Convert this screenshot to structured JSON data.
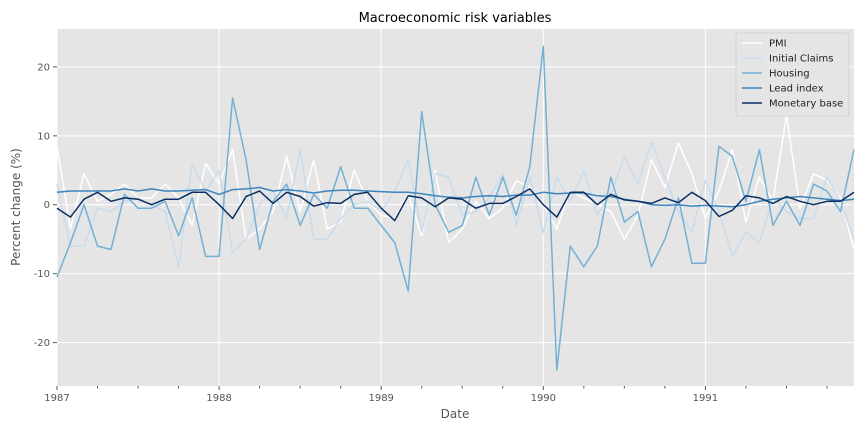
{
  "chart_data": {
    "type": "line",
    "title": "Macroeconomic risk variables",
    "xlabel": "Date",
    "ylabel": "Percent change (%)",
    "xlim": [
      "1987-01",
      "1991-12"
    ],
    "ylim": [
      -26.3,
      25.5
    ],
    "yticks": [
      -20,
      -10,
      0,
      10,
      20
    ],
    "xticks": [
      "1987",
      "1988",
      "1989",
      "1990",
      "1991"
    ],
    "grid": true,
    "legend_position": "top-right",
    "x": [
      "1987-01",
      "1987-02",
      "1987-03",
      "1987-04",
      "1987-05",
      "1987-06",
      "1987-07",
      "1987-08",
      "1987-09",
      "1987-10",
      "1987-11",
      "1987-12",
      "1988-01",
      "1988-02",
      "1988-03",
      "1988-04",
      "1988-05",
      "1988-06",
      "1988-07",
      "1988-08",
      "1988-09",
      "1988-10",
      "1988-11",
      "1988-12",
      "1989-01",
      "1989-02",
      "1989-03",
      "1989-04",
      "1989-05",
      "1989-06",
      "1989-07",
      "1989-08",
      "1989-09",
      "1989-10",
      "1989-11",
      "1989-12",
      "1990-01",
      "1990-02",
      "1990-03",
      "1990-04",
      "1990-05",
      "1990-06",
      "1990-07",
      "1990-08",
      "1990-09",
      "1990-10",
      "1990-11",
      "1990-12",
      "1991-01",
      "1991-02",
      "1991-03",
      "1991-04",
      "1991-05",
      "1991-06",
      "1991-07",
      "1991-08",
      "1991-09",
      "1991-10",
      "1991-11",
      "1991-12"
    ],
    "series": [
      {
        "name": "PMI",
        "color": "#ffffff",
        "values": [
          8.5,
          -3.5,
          4.5,
          0.5,
          1.5,
          3,
          1,
          1,
          3,
          1,
          -3,
          6,
          3,
          8,
          -5,
          -3.5,
          -1,
          7,
          -1,
          6.5,
          -3.5,
          -2.5,
          5,
          0.5,
          -1.5,
          -2,
          1.5,
          -4.5,
          5,
          -5.5,
          -3.5,
          0.5,
          -2,
          -0.5,
          3.5,
          2.5,
          0,
          -3.5,
          2,
          1,
          0,
          -1,
          -5,
          -1.5,
          6.5,
          2.5,
          9,
          4.5,
          -2,
          2,
          8,
          -2.5,
          4,
          0.5,
          13,
          -0.5,
          4.5,
          3.5,
          1,
          -6.5
        ]
      },
      {
        "name": "Initial Claims",
        "color": "#c9dced",
        "values": [
          3,
          -6,
          -6,
          -0.5,
          -1,
          0.5,
          1,
          0,
          -1,
          -9,
          6,
          2,
          5,
          -7,
          -5,
          0,
          2,
          -2,
          8,
          -5,
          -5,
          -2,
          0,
          0.5,
          -1,
          2,
          6.5,
          -4,
          4.5,
          4,
          -1.5,
          -1,
          1,
          4.5,
          -3,
          4,
          -4,
          4,
          0.5,
          5,
          -1.5,
          1.5,
          7,
          3,
          9,
          4,
          -1,
          -4,
          3.5,
          -1,
          -7.5,
          -4,
          -5.5,
          1,
          -1,
          -2,
          -2,
          4,
          0.5,
          -5
        ]
      },
      {
        "name": "Housing",
        "color": "#74b0d5",
        "values": [
          -10.5,
          -5.5,
          0,
          -6,
          -6.5,
          1.5,
          -0.5,
          -0.5,
          0.5,
          -4.5,
          1,
          -7.5,
          -7.5,
          15.5,
          6.5,
          -6.5,
          0.5,
          3,
          -3,
          1.5,
          -0.5,
          5.5,
          -0.5,
          -0.5,
          -3,
          -5.5,
          -12.5,
          13.5,
          0,
          -4,
          -3,
          4,
          -1.5,
          4,
          -1.5,
          5.5,
          23,
          -24,
          -6,
          -9,
          -6,
          4,
          -2.5,
          -1,
          -9,
          -5,
          1,
          -8.5,
          -8.5,
          8.5,
          7,
          0.5,
          8,
          -3,
          0.5,
          -3,
          3,
          2,
          -1,
          8
        ]
      },
      {
        "name": "Lead index",
        "color": "#3d85bc",
        "values": [
          1.8,
          2,
          2,
          2,
          2,
          2.3,
          2,
          2.3,
          2,
          2,
          2.1,
          2.2,
          1.5,
          2.2,
          2.3,
          2.5,
          2,
          2.2,
          2,
          1.7,
          2,
          2.1,
          2.1,
          2,
          1.9,
          1.8,
          1.8,
          1.6,
          1.3,
          1.1,
          1,
          1.2,
          1.3,
          1.2,
          1.4,
          1.4,
          1.8,
          1.6,
          1.7,
          1.7,
          1.3,
          1.2,
          0.8,
          0.5,
          0,
          -0.1,
          0,
          -0.2,
          -0.1,
          -0.2,
          -0.3,
          0,
          0.5,
          0.8,
          1,
          1.2,
          1,
          0.8,
          0.6,
          0.8
        ]
      },
      {
        "name": "Monetary base",
        "color": "#0b2f61",
        "values": [
          -0.5,
          -1.8,
          0.8,
          1.8,
          0.5,
          1,
          0.8,
          0,
          0.8,
          0.8,
          1.8,
          1.8,
          0,
          -2,
          1.2,
          2,
          0.2,
          1.8,
          1.2,
          -0.2,
          0.3,
          0.2,
          1.5,
          1.8,
          -0.5,
          -2.3,
          1.3,
          1,
          -0.3,
          1,
          0.8,
          -0.5,
          0.2,
          0.2,
          1.2,
          2.3,
          0,
          -1.8,
          1.8,
          1.8,
          0,
          1.5,
          0.7,
          0.5,
          0.2,
          1,
          0.3,
          1.8,
          0.6,
          -1.7,
          -0.8,
          1.3,
          1,
          0.2,
          1.2,
          0.5,
          0,
          0.5,
          0.5,
          1.8
        ]
      }
    ]
  }
}
